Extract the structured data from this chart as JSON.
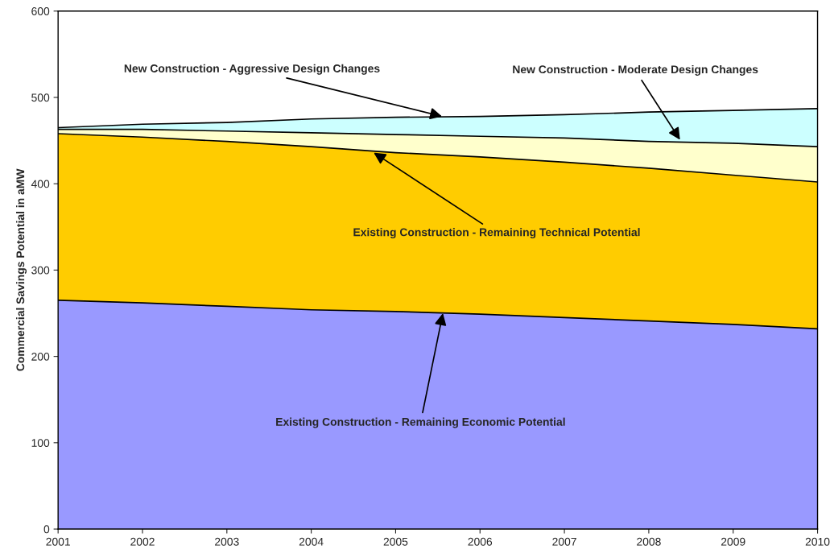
{
  "chart_data": {
    "type": "area",
    "stacked": true,
    "ylabel": "Commercial Savings Potential in aMW",
    "x": [
      2001,
      2002,
      2003,
      2004,
      2005,
      2006,
      2007,
      2008,
      2009,
      2010
    ],
    "series": [
      {
        "color": "#9999ff",
        "values": [
          265,
          262,
          258,
          254,
          252,
          249,
          245,
          241,
          237,
          232
        ]
      },
      {
        "color": "#ffcc00",
        "values": [
          193,
          192,
          191,
          189,
          184,
          182,
          180,
          177,
          173,
          170
        ]
      },
      {
        "color": "#ffffcc",
        "values": [
          5,
          9,
          12,
          16,
          21,
          24,
          28,
          31,
          37,
          41
        ]
      },
      {
        "color": "#ccffff",
        "values": [
          2,
          6,
          10,
          16,
          20,
          23,
          27,
          34,
          38,
          44
        ]
      }
    ],
    "xlim": [
      2001,
      2010
    ],
    "ylim": [
      0,
      600
    ],
    "xticks": [
      2001,
      2002,
      2003,
      2004,
      2005,
      2006,
      2007,
      2008,
      2009,
      2010
    ],
    "yticks": [
      0,
      100,
      200,
      300,
      400,
      500,
      600
    ],
    "grid": false,
    "legend": false,
    "annotations": [
      {
        "text": "New Construction - Aggressive Design Changes",
        "x": 2005.55,
        "y": 478
      },
      {
        "text": "New Construction - Moderate Design Changes",
        "x": 2008.37,
        "y": 451
      },
      {
        "text": "Existing Construction - Remaining Technical Potential",
        "x": 2004.74,
        "y": 436
      },
      {
        "text": "Existing Construction - Remaining Economic Potential",
        "x": 2005.56,
        "y": 250
      }
    ]
  }
}
